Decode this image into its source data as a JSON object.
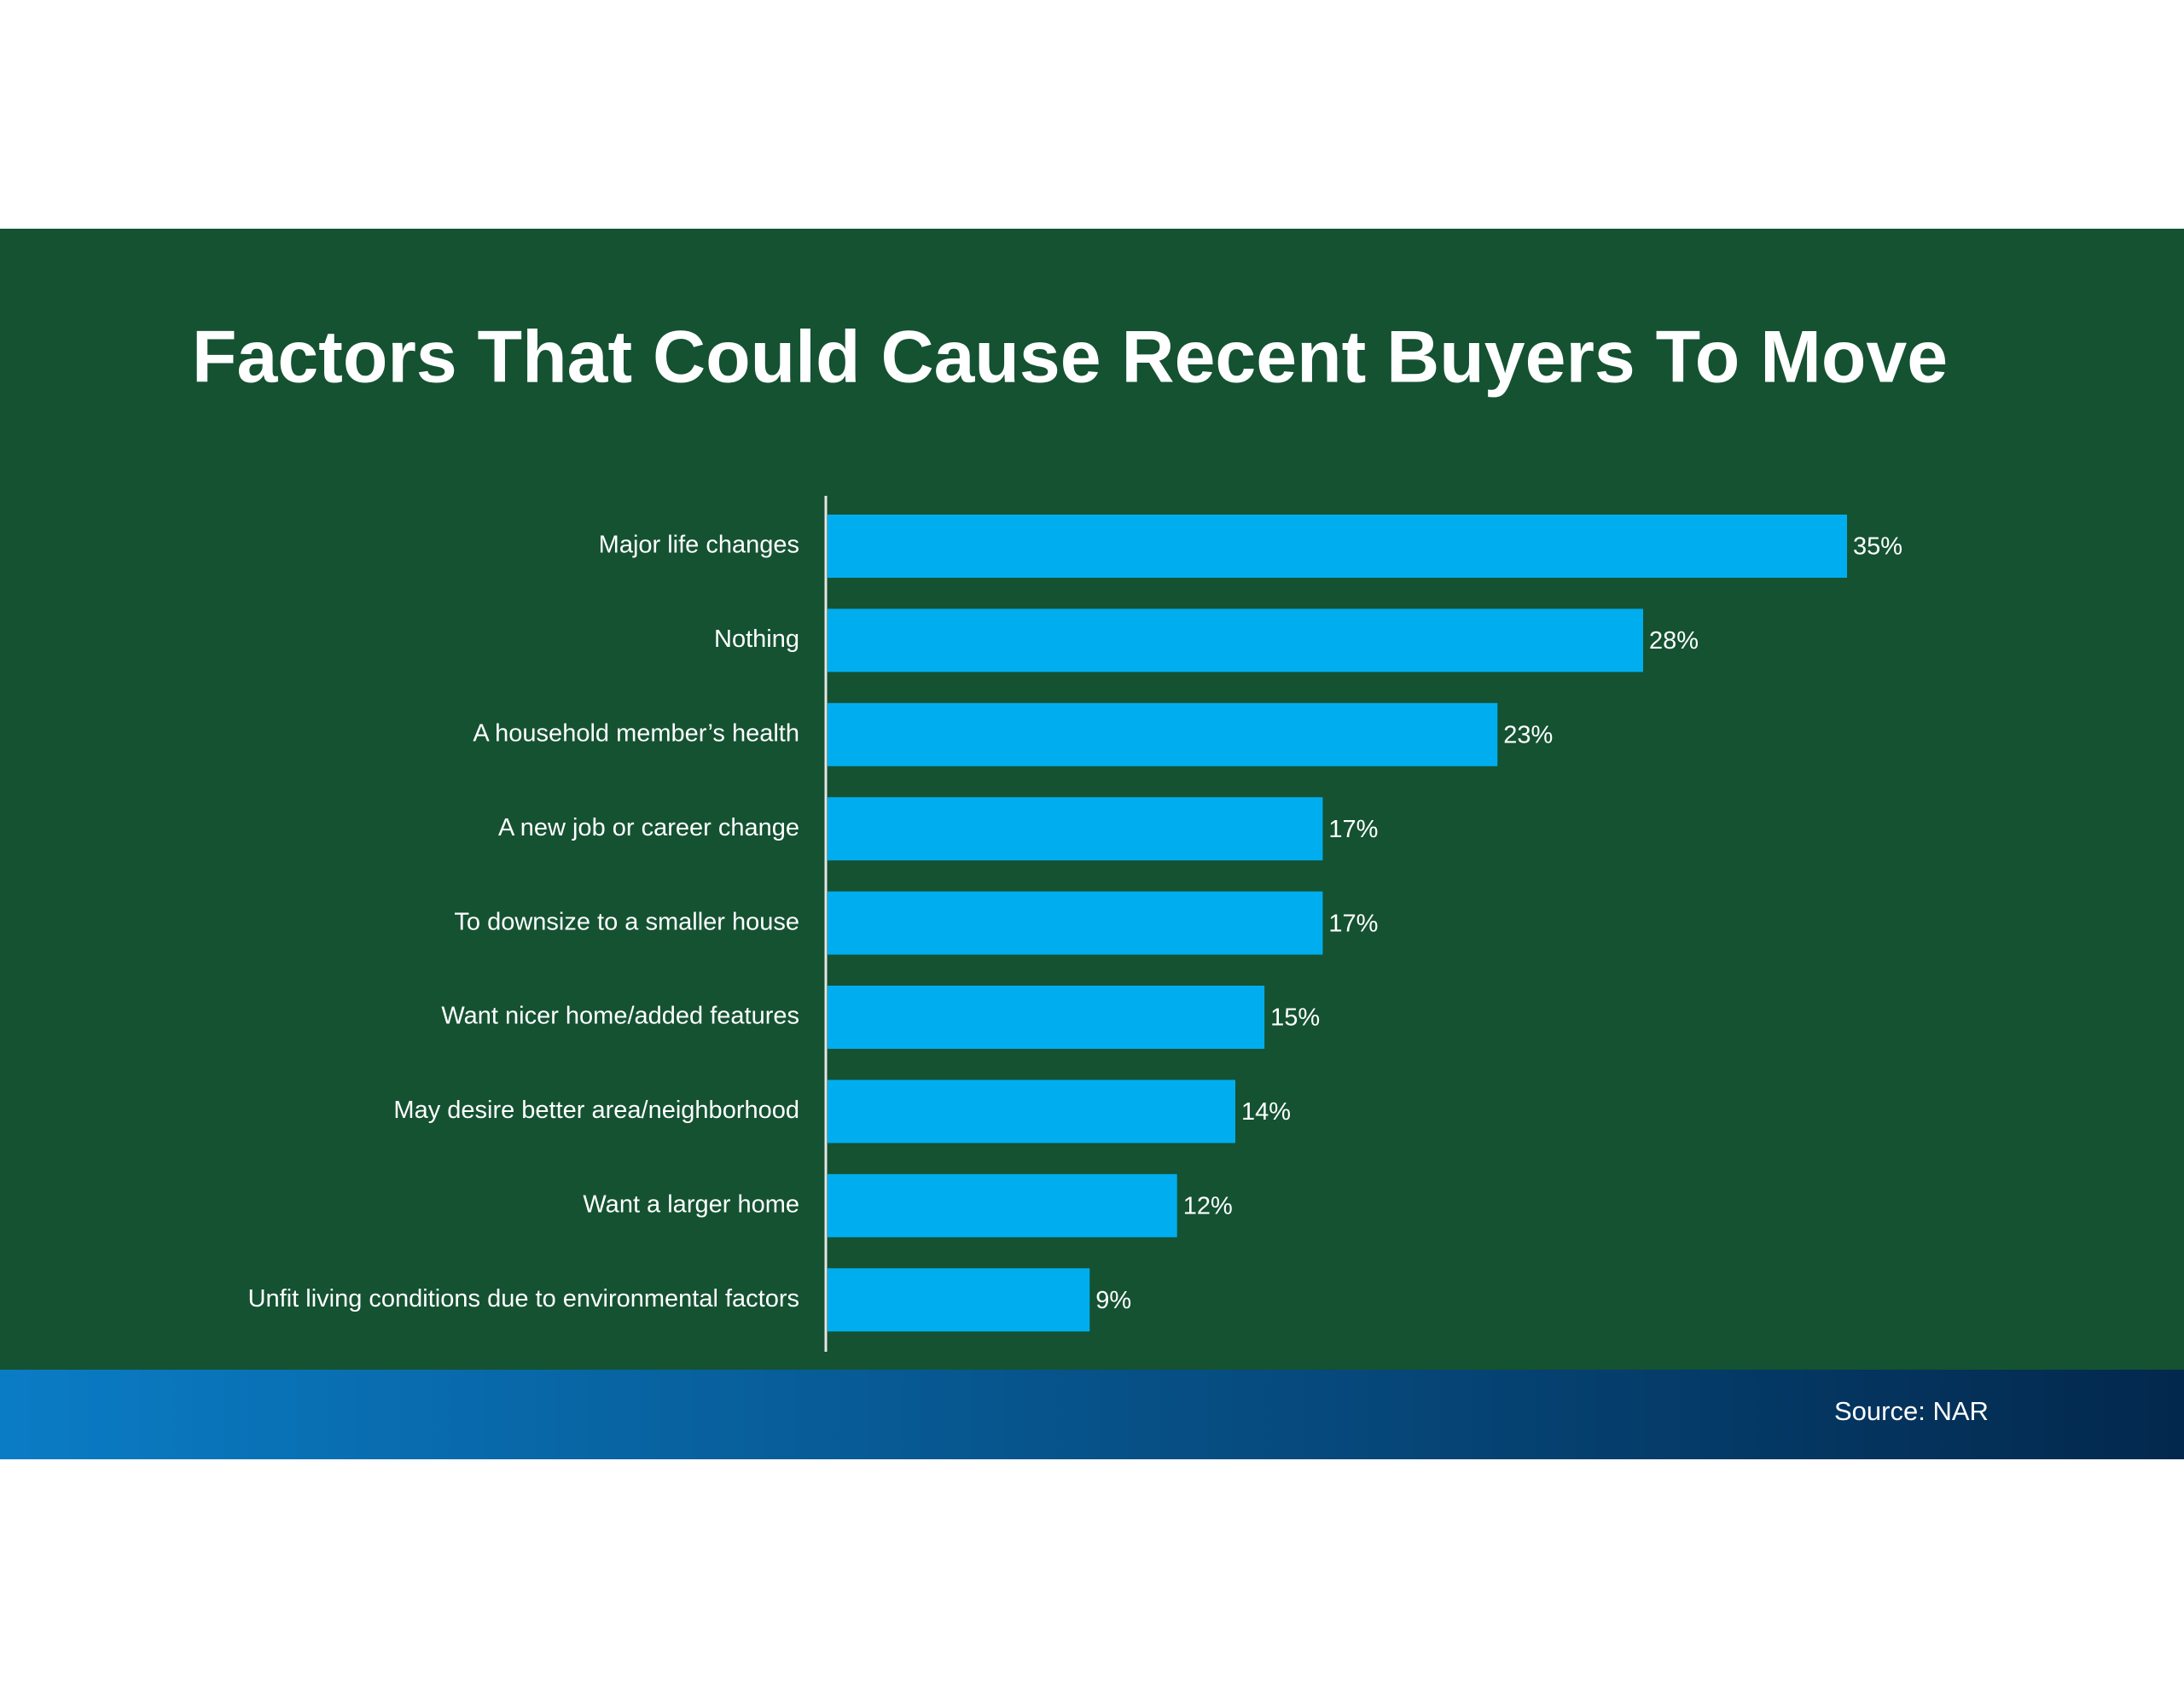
{
  "chart_data": {
    "type": "bar",
    "orientation": "horizontal",
    "title": "Factors That Could Cause Recent Buyers To Move",
    "categories": [
      "Major life changes",
      "Nothing",
      "A household member’s health",
      "A new job or career change",
      "To downsize to a smaller house",
      "Want nicer home/added features",
      "May desire better area/neighborhood",
      "Want a larger home",
      "Unfit living conditions due to environmental factors"
    ],
    "values": [
      35,
      28,
      23,
      17,
      17,
      15,
      14,
      12,
      9
    ],
    "value_labels": [
      "35%",
      "28%",
      "23%",
      "17%",
      "17%",
      "15%",
      "14%",
      "12%",
      "9%"
    ],
    "color": "#00aeef",
    "source": "Source: NAR"
  }
}
